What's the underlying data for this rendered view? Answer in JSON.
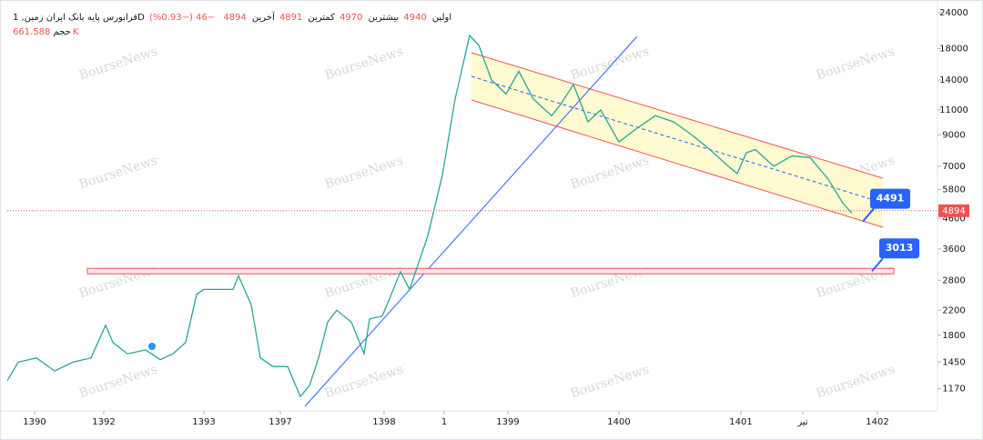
{
  "header": {
    "symbol": "فرابورس پایه بانک ایران زمین, 1D",
    "open_label": "اولین",
    "open": 4940,
    "high_label": "بیشترین",
    "high": 4970,
    "low_label": "کمترین",
    "low": 4891,
    "close_label": "آخرین",
    "close": 4894,
    "change": "−46 (−0.93%)",
    "volume_label": "حجم",
    "volume": "661.588K"
  },
  "watermark": "BourseNews",
  "chart_data": {
    "type": "line",
    "color": "#26a69a",
    "log_scale": true,
    "grid": false,
    "y_axis_side": "right",
    "x": [
      0,
      6,
      16,
      26,
      36,
      46,
      54,
      58,
      66,
      76,
      84,
      91,
      98,
      104,
      108,
      116,
      124,
      127,
      134,
      139,
      146,
      154,
      161,
      166,
      171,
      176,
      181,
      189,
      196,
      199,
      206,
      211,
      216,
      221,
      231,
      239,
      246,
      254,
      259,
      266,
      274,
      281,
      289,
      299,
      304,
      311,
      319,
      326,
      336,
      346,
      356,
      366,
      376,
      386,
      396,
      401,
      406,
      411,
      421,
      431,
      441,
      451,
      459,
      464
    ],
    "values": [
      1250,
      1450,
      1500,
      1350,
      1450,
      1500,
      1950,
      1700,
      1550,
      1600,
      1480,
      1550,
      1700,
      2500,
      2600,
      2600,
      2600,
      2900,
      2300,
      1500,
      1400,
      1400,
      1100,
      1200,
      1500,
      2000,
      2200,
      2000,
      1550,
      2050,
      2100,
      2500,
      3000,
      2600,
      4000,
      6500,
      12000,
      20000,
      18500,
      14000,
      12500,
      15000,
      12000,
      10500,
      11500,
      13500,
      10000,
      11000,
      8500,
      9500,
      10500,
      10000,
      9000,
      8000,
      7000,
      6600,
      7800,
      8000,
      7000,
      7600,
      7500,
      6300,
      5200,
      4800
    ],
    "last_price": 4894,
    "annotations": [
      {
        "value": 4491,
        "x": 470
      },
      {
        "value": 3013,
        "x": 475
      }
    ],
    "xlim": [
      0,
      511
    ],
    "ylim": [
      980,
      26600
    ],
    "xticks": [
      {
        "value": 15,
        "label": "1390"
      },
      {
        "value": 53,
        "label": "1392"
      },
      {
        "value": 108,
        "label": "1393"
      },
      {
        "value": 150,
        "label": "1397"
      },
      {
        "value": 207,
        "label": "1398"
      },
      {
        "value": 240,
        "label": "1"
      },
      {
        "value": 275,
        "label": "1399"
      },
      {
        "value": 336,
        "label": "1400"
      },
      {
        "value": 403,
        "label": "1401"
      },
      {
        "value": 437,
        "label": "تیر"
      },
      {
        "value": 478,
        "label": "1402"
      }
    ],
    "yticks": [
      24000,
      18000,
      14000,
      11000,
      9000,
      7000,
      5800,
      4600,
      3600,
      2800,
      2200,
      1800,
      1450,
      1170
    ]
  }
}
